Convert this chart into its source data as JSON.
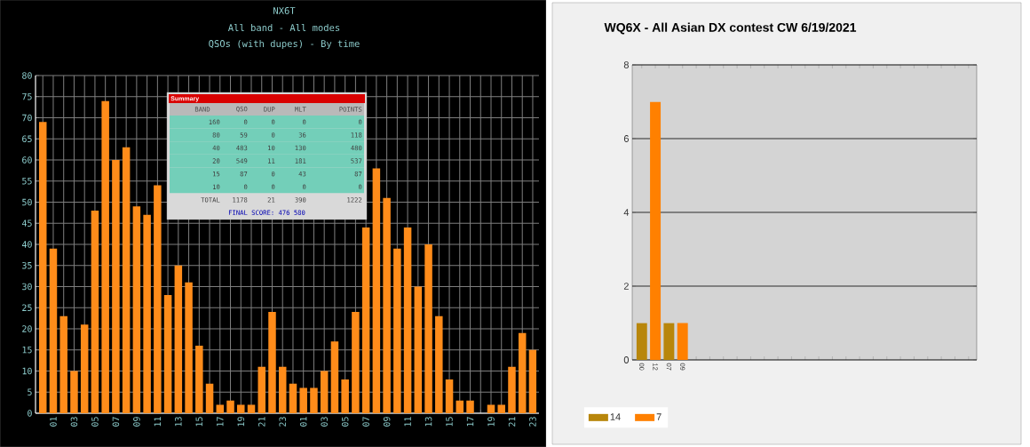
{
  "chart_data": [
    {
      "type": "bar",
      "title": "NX6T",
      "subtitle": "All band - All modes",
      "annotations": [
        "QSOs (with dupes) - By time"
      ],
      "categories": [
        null,
        "01",
        null,
        "03",
        null,
        "05",
        null,
        "07",
        null,
        "09",
        null,
        "11",
        null,
        "13",
        null,
        "15",
        null,
        "17",
        null,
        "19",
        null,
        "21",
        null,
        "23",
        null,
        "01",
        null,
        "03",
        null,
        "05",
        null,
        "07",
        null,
        "09",
        null,
        "11",
        null,
        "13",
        null,
        "15",
        null,
        "17",
        null,
        "19",
        null,
        "21",
        null,
        "23"
      ],
      "values": [
        69,
        39,
        23,
        10,
        21,
        48,
        74,
        60,
        63,
        49,
        47,
        54,
        28,
        35,
        31,
        16,
        7,
        2,
        3,
        2,
        2,
        11,
        24,
        11,
        7,
        6,
        6,
        10,
        17,
        8,
        24,
        44,
        58,
        51,
        39,
        44,
        30,
        40,
        23,
        8,
        3,
        3,
        0,
        2,
        2,
        11,
        19,
        15
      ],
      "color": "#ff8c1a",
      "ylim": [
        0,
        80
      ],
      "yticks": [
        0,
        5,
        10,
        15,
        20,
        25,
        30,
        35,
        40,
        45,
        50,
        55,
        60,
        65,
        70,
        75,
        80
      ],
      "grid": true
    },
    {
      "type": "other",
      "title": "Summary",
      "ylabel": "BAND",
      "categories": [
        "QSO",
        "DUP",
        "MLT",
        "POINTS"
      ],
      "y_categories": [
        "160",
        "80",
        "40",
        "20",
        "15",
        "10",
        "TOTAL"
      ],
      "cell_labels": [
        [
          "0",
          "0",
          "0",
          "0"
        ],
        [
          "59",
          "0",
          "36",
          "118"
        ],
        [
          "483",
          "10",
          "130",
          "480"
        ],
        [
          "549",
          "11",
          "181",
          "537"
        ],
        [
          "87",
          "0",
          "43",
          "87"
        ],
        [
          "0",
          "0",
          "0",
          "0"
        ],
        [
          "1178",
          "21",
          "390",
          "1222"
        ]
      ],
      "annotations": [
        "FINAL SCORE: 476 580"
      ]
    },
    {
      "type": "bar",
      "title": "WQ6X - All Asian DX contest CW 6/19/2021",
      "categories": [
        "00",
        "12",
        "07",
        "09",
        null,
        null,
        null,
        null,
        null,
        null,
        null,
        null,
        null,
        null,
        null,
        null,
        null,
        null,
        null,
        null,
        null,
        null,
        null,
        null,
        null
      ],
      "series": [
        {
          "name": "14",
          "color": "#b8860b",
          "values": [
            1,
            null,
            1,
            null,
            null,
            null,
            null,
            null,
            null,
            null,
            null,
            null,
            null,
            null,
            null,
            null,
            null,
            null,
            null,
            null,
            null,
            null,
            null,
            null,
            null
          ]
        },
        {
          "name": "7",
          "color": "#ff8000",
          "values": [
            null,
            7,
            null,
            1,
            null,
            null,
            null,
            null,
            null,
            null,
            null,
            null,
            null,
            null,
            null,
            null,
            null,
            null,
            null,
            null,
            null,
            null,
            null,
            null,
            null
          ]
        }
      ],
      "ylim": [
        0,
        8
      ],
      "yticks": [
        0,
        2,
        4,
        6,
        8
      ],
      "grid": "y",
      "legend": "bottom left"
    }
  ]
}
